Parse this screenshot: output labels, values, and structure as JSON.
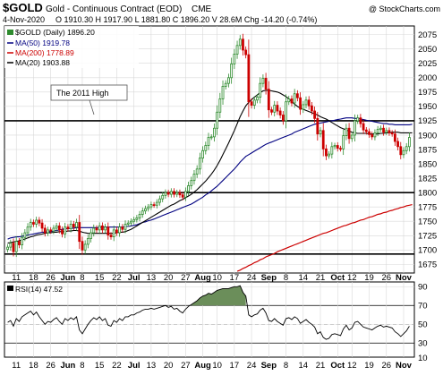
{
  "header": {
    "symbol": "$GOLD",
    "name": "Gold - Continuous Contract (EOD)",
    "exchange": "CME",
    "date": "4-Nov-2020",
    "ohlc": "O 1910.30  H 1917.90  L 1881.80  C 1896.20  V 28.6M  Chg -14.20 (-0.74%)",
    "watermark": "@ StockCharts.com"
  },
  "legend": {
    "main_label": "$GOLD (Daily) 1896.20",
    "ma50_label": "MA(50) 1919.78",
    "ma200_label": "MA(200) 1778.89",
    "ma20_label": "MA(20) 1903.88"
  },
  "annotation": {
    "text": "The 2011 High"
  },
  "rsi_label": "RSI(14) 47.52",
  "colors": {
    "up": "#2e8b2e",
    "down": "#cc0000",
    "ma50": "#000080",
    "ma200": "#cc0000",
    "ma20": "#000000",
    "rsi_fill": "#6b8e5a",
    "grid": "#d8d8d8"
  },
  "chart_data": [
    {
      "type": "candlestick",
      "title": "$GOLD (Daily)",
      "ylim": [
        1660,
        2090
      ],
      "y_ticks": [
        1675,
        1700,
        1725,
        1750,
        1775,
        1800,
        1825,
        1850,
        1875,
        1900,
        1925,
        1950,
        1975,
        2000,
        2025,
        2050,
        2075
      ],
      "x_ticks": [
        "11",
        "18",
        "26",
        "Jun",
        "8",
        "15",
        "22",
        "Jul",
        "13",
        "20",
        "27",
        "Aug",
        "10",
        "17",
        "24",
        "Sep",
        "8",
        "14",
        "21",
        "Oct",
        "12",
        "19",
        "26",
        "Nov"
      ],
      "bold_x_ticks": [
        "Jun",
        "Jul",
        "Aug",
        "Sep",
        "Oct",
        "Nov"
      ],
      "horizontal_lines": [
        1925,
        1800,
        1693
      ],
      "close": [
        1705,
        1712,
        1697,
        1715,
        1709,
        1722,
        1730,
        1740,
        1748,
        1745,
        1752,
        1747,
        1738,
        1730,
        1735,
        1733,
        1738,
        1742,
        1735,
        1728,
        1740,
        1737,
        1745,
        1740,
        1748,
        1715,
        1700,
        1710,
        1720,
        1730,
        1738,
        1735,
        1742,
        1735,
        1740,
        1726,
        1723,
        1735,
        1730,
        1740,
        1736,
        1745,
        1747,
        1750,
        1753,
        1756,
        1762,
        1768,
        1772,
        1775,
        1779,
        1778,
        1783,
        1789,
        1795,
        1800,
        1797,
        1802,
        1797,
        1800,
        1796,
        1792,
        1802,
        1812,
        1821,
        1832,
        1841,
        1860,
        1873,
        1882,
        1896,
        1897,
        1912,
        1940,
        1963,
        1985,
        1990,
        2000,
        2024,
        2041,
        2056,
        2067,
        2048,
        2040,
        1958,
        1952,
        1961,
        1966,
        1990,
        1999,
        1980,
        1944,
        1940,
        1952,
        1942,
        1935,
        1925,
        1958,
        1963,
        1956,
        1972,
        1965,
        1945,
        1953,
        1961,
        1951,
        1942,
        1929,
        1902,
        1908,
        1876,
        1864,
        1867,
        1880,
        1882,
        1877,
        1876,
        1899,
        1912,
        1894,
        1900,
        1925,
        1930,
        1920,
        1909,
        1906,
        1901,
        1897,
        1904,
        1910,
        1912,
        1905,
        1908,
        1904,
        1902,
        1889,
        1880,
        1866,
        1873,
        1880,
        1896
      ],
      "series": [
        {
          "name": "MA(50)",
          "values": [
            1719,
            1721,
            1722,
            1723,
            1723,
            1724,
            1725,
            1726,
            1727,
            1728,
            1729,
            1730,
            1731,
            1731,
            1732,
            1732,
            1733,
            1734,
            1735,
            1736,
            1737,
            1737,
            1738,
            1738,
            1739,
            1739,
            1739,
            1739,
            1739,
            1739,
            1739,
            1739,
            1739,
            1740,
            1740,
            1740,
            1740,
            1740,
            1740,
            1740,
            1740,
            1741,
            1741,
            1742,
            1743,
            1744,
            1746,
            1748,
            1749,
            1751,
            1752,
            1754,
            1756,
            1758,
            1760,
            1762,
            1764,
            1766,
            1768,
            1770,
            1772,
            1774,
            1776,
            1778,
            1780,
            1783,
            1786,
            1789,
            1792,
            1796,
            1799,
            1803,
            1807,
            1811,
            1816,
            1821,
            1826,
            1831,
            1836,
            1841,
            1847,
            1853,
            1858,
            1863,
            1866,
            1869,
            1872,
            1875,
            1878,
            1881,
            1884,
            1886,
            1888,
            1890,
            1892,
            1894,
            1896,
            1898,
            1900,
            1902,
            1905,
            1907,
            1909,
            1911,
            1913,
            1915,
            1917,
            1919,
            1920,
            1921,
            1922,
            1923,
            1924,
            1925,
            1926,
            1927,
            1928,
            1929,
            1930,
            1930,
            1930,
            1929,
            1929,
            1928,
            1927,
            1926,
            1925,
            1924,
            1923,
            1922,
            1921,
            1920,
            1920,
            1919,
            1919,
            1918,
            1918,
            1918,
            1918,
            1918,
            1918,
            1919
          ]
        },
        {
          "name": "MA(200)",
          "values": [
            null,
            null,
            null,
            null,
            null,
            null,
            null,
            null,
            null,
            null,
            null,
            null,
            null,
            null,
            null,
            null,
            null,
            null,
            null,
            null,
            null,
            null,
            null,
            null,
            null,
            null,
            null,
            null,
            null,
            null,
            null,
            null,
            null,
            null,
            null,
            null,
            null,
            null,
            null,
            null,
            null,
            null,
            null,
            null,
            null,
            null,
            null,
            null,
            null,
            null,
            null,
            null,
            null,
            null,
            null,
            null,
            null,
            null,
            null,
            null,
            null,
            null,
            null,
            null,
            null,
            null,
            null,
            null,
            null,
            null,
            null,
            null,
            null,
            null,
            null,
            null,
            null,
            null,
            null,
            null,
            1663,
            1665,
            1668,
            1670,
            1673,
            1675,
            1678,
            1680,
            1683,
            1685,
            1688,
            1690,
            1692,
            1694,
            1697,
            1699,
            1701,
            1703,
            1705,
            1707,
            1709,
            1711,
            1713,
            1715,
            1717,
            1719,
            1721,
            1723,
            1725,
            1727,
            1729,
            1730,
            1732,
            1734,
            1736,
            1738,
            1740,
            1742,
            1743,
            1745,
            1747,
            1748,
            1750,
            1752,
            1753,
            1755,
            1757,
            1758,
            1760,
            1762,
            1763,
            1765,
            1766,
            1768,
            1769,
            1771,
            1772,
            1774,
            1775,
            1777,
            1778,
            1779
          ]
        },
        {
          "name": "MA(20)",
          "values": [
            1712,
            1713,
            1714,
            1715,
            1716,
            1718,
            1719,
            1721,
            1723,
            1724,
            1726,
            1727,
            1728,
            1729,
            1730,
            1730,
            1731,
            1731,
            1732,
            1732,
            1732,
            1733,
            1733,
            1734,
            1734,
            1733,
            1731,
            1730,
            1729,
            1729,
            1729,
            1729,
            1729,
            1729,
            1729,
            1729,
            1729,
            1729,
            1730,
            1731,
            1731,
            1732,
            1734,
            1736,
            1739,
            1742,
            1745,
            1748,
            1751,
            1754,
            1757,
            1760,
            1763,
            1766,
            1769,
            1772,
            1775,
            1778,
            1780,
            1783,
            1786,
            1788,
            1791,
            1794,
            1797,
            1801,
            1805,
            1810,
            1815,
            1820,
            1826,
            1832,
            1839,
            1847,
            1856,
            1866,
            1876,
            1886,
            1897,
            1908,
            1920,
            1932,
            1942,
            1951,
            1957,
            1962,
            1966,
            1970,
            1974,
            1977,
            1978,
            1978,
            1977,
            1976,
            1975,
            1973,
            1970,
            1967,
            1963,
            1958,
            1954,
            1950,
            1947,
            1945,
            1943,
            1941,
            1939,
            1937,
            1935,
            1932,
            1930,
            1928,
            1925,
            1922,
            1919,
            1916,
            1913,
            1911,
            1909,
            1907,
            1905,
            1904,
            1903,
            1903,
            1903,
            1903,
            1902,
            1902,
            1902,
            1902,
            1903,
            1903,
            1904,
            1904,
            1905,
            1905,
            1905,
            1904,
            1904,
            1904,
            1904,
            1904
          ]
        }
      ]
    },
    {
      "type": "line",
      "title": "RSI(14)",
      "ylim": [
        15,
        95
      ],
      "y_ticks": [
        10,
        30,
        50,
        70,
        90
      ],
      "reference_lines": [
        30,
        70
      ],
      "values": [
        52,
        54,
        48,
        56,
        53,
        58,
        60,
        62,
        64,
        60,
        63,
        58,
        54,
        50,
        53,
        52,
        55,
        57,
        53,
        50,
        56,
        54,
        57,
        55,
        58,
        44,
        40,
        45,
        50,
        54,
        57,
        55,
        58,
        54,
        56,
        49,
        48,
        54,
        52,
        56,
        54,
        58,
        58,
        60,
        60,
        62,
        63,
        65,
        66,
        66,
        67,
        66,
        67,
        68,
        69,
        70,
        68,
        69,
        66,
        67,
        64,
        62,
        66,
        69,
        71,
        73,
        75,
        78,
        80,
        81,
        83,
        82,
        84,
        86,
        87,
        88,
        88,
        88,
        89,
        90,
        90,
        91,
        84,
        80,
        60,
        58,
        60,
        61,
        65,
        67,
        62,
        54,
        53,
        56,
        53,
        51,
        49,
        56,
        57,
        55,
        58,
        56,
        51,
        53,
        55,
        52,
        50,
        47,
        40,
        42,
        36,
        34,
        35,
        39,
        40,
        39,
        38,
        45,
        49,
        44,
        46,
        52,
        53,
        50,
        47,
        46,
        45,
        44,
        46,
        48,
        49,
        47,
        48,
        47,
        46,
        42,
        40,
        37,
        40,
        43,
        48
      ]
    }
  ]
}
